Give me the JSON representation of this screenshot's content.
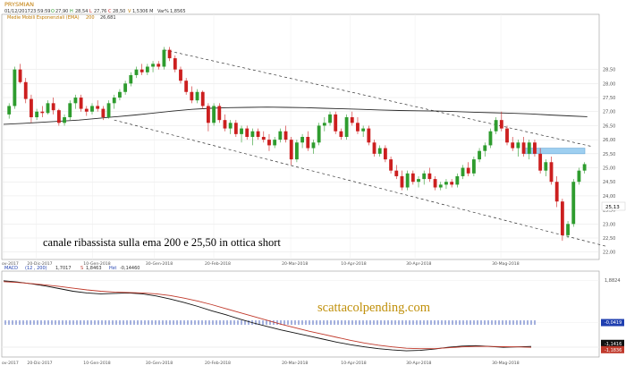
{
  "chart_data": [
    {
      "type": "candlestick",
      "title": "PRYSMIAN",
      "info_line": {
        "date": "01/12/2017",
        "time": "23:59:59",
        "open": "27,90",
        "high": "28,54",
        "low": "27,76",
        "close": "28,50",
        "volume": "1,5306 M",
        "var_pct": "1,8565"
      },
      "indicator": {
        "label": "Medie Mobili Esponenziali (EMA)",
        "period": "200",
        "value": "26,681"
      },
      "y_ticks": [
        "28,50",
        "28,00",
        "27,50",
        "27,00",
        "26,50",
        "26,00",
        "25,50",
        "25,00",
        "24,50",
        "24,00",
        "23,50",
        "23,00",
        "22,50",
        "22,00"
      ],
      "ylim": [
        21.8,
        30.4
      ],
      "x_ticks": [
        "ov-2017",
        "20-Dic-2017",
        "10-Gen-2018",
        "30-Gen-2018",
        "20-Feb-2018",
        "20-Mar-2018",
        "10-Apr-2018",
        "30-Apr-2018",
        "30-Mag-2018"
      ],
      "last_price_label": "25,13",
      "annotation": "canale ribassista sulla ema 200 e 25,50 in ottica short",
      "colors": {
        "up": "#2e9c2e",
        "down": "#cc1f1f",
        "ema": "#2b2b2b",
        "channel": "#333333",
        "target_zone": "#9ecff0"
      },
      "candles": [
        {
          "o": 26.9,
          "h": 27.3,
          "l": 26.75,
          "c": 27.2
        },
        {
          "o": 27.2,
          "h": 28.6,
          "l": 27.1,
          "c": 28.5
        },
        {
          "o": 28.5,
          "h": 28.7,
          "l": 28.0,
          "c": 28.05
        },
        {
          "o": 28.05,
          "h": 28.2,
          "l": 27.3,
          "c": 27.45
        },
        {
          "o": 27.45,
          "h": 27.6,
          "l": 26.6,
          "c": 26.8
        },
        {
          "o": 26.8,
          "h": 27.1,
          "l": 26.7,
          "c": 27.0
        },
        {
          "o": 27.0,
          "h": 27.2,
          "l": 26.8,
          "c": 26.95
        },
        {
          "o": 26.95,
          "h": 27.4,
          "l": 26.9,
          "c": 27.3
        },
        {
          "o": 27.3,
          "h": 27.5,
          "l": 26.9,
          "c": 27.05
        },
        {
          "o": 27.05,
          "h": 27.1,
          "l": 26.5,
          "c": 26.6
        },
        {
          "o": 26.6,
          "h": 26.9,
          "l": 26.5,
          "c": 26.8
        },
        {
          "o": 26.8,
          "h": 27.4,
          "l": 26.7,
          "c": 27.3
        },
        {
          "o": 27.3,
          "h": 27.6,
          "l": 27.1,
          "c": 27.5
        },
        {
          "o": 27.5,
          "h": 27.6,
          "l": 27.0,
          "c": 27.1
        },
        {
          "o": 27.1,
          "h": 27.2,
          "l": 26.85,
          "c": 27.0
        },
        {
          "o": 27.0,
          "h": 27.3,
          "l": 26.9,
          "c": 27.2
        },
        {
          "o": 27.2,
          "h": 27.4,
          "l": 27.0,
          "c": 27.1
        },
        {
          "o": 27.1,
          "h": 27.2,
          "l": 26.7,
          "c": 26.8
        },
        {
          "o": 26.8,
          "h": 27.4,
          "l": 26.75,
          "c": 27.3
        },
        {
          "o": 27.3,
          "h": 27.6,
          "l": 27.1,
          "c": 27.5
        },
        {
          "o": 27.5,
          "h": 27.8,
          "l": 27.4,
          "c": 27.7
        },
        {
          "o": 27.7,
          "h": 28.1,
          "l": 27.6,
          "c": 28.0
        },
        {
          "o": 28.0,
          "h": 28.4,
          "l": 27.9,
          "c": 28.3
        },
        {
          "o": 28.3,
          "h": 28.6,
          "l": 28.2,
          "c": 28.5
        },
        {
          "o": 28.5,
          "h": 28.7,
          "l": 28.3,
          "c": 28.4
        },
        {
          "o": 28.4,
          "h": 28.7,
          "l": 28.3,
          "c": 28.6
        },
        {
          "o": 28.6,
          "h": 28.8,
          "l": 28.4,
          "c": 28.7
        },
        {
          "o": 28.7,
          "h": 28.8,
          "l": 28.5,
          "c": 28.6
        },
        {
          "o": 28.6,
          "h": 29.3,
          "l": 28.5,
          "c": 29.2
        },
        {
          "o": 29.2,
          "h": 29.3,
          "l": 28.8,
          "c": 28.9
        },
        {
          "o": 28.9,
          "h": 29.0,
          "l": 28.4,
          "c": 28.5
        },
        {
          "o": 28.5,
          "h": 28.6,
          "l": 28.0,
          "c": 28.1
        },
        {
          "o": 28.1,
          "h": 28.2,
          "l": 27.6,
          "c": 27.7
        },
        {
          "o": 27.7,
          "h": 27.9,
          "l": 27.3,
          "c": 27.4
        },
        {
          "o": 27.4,
          "h": 27.8,
          "l": 27.3,
          "c": 27.7
        },
        {
          "o": 27.7,
          "h": 27.75,
          "l": 27.1,
          "c": 27.2
        },
        {
          "o": 27.2,
          "h": 27.3,
          "l": 26.3,
          "c": 26.6
        },
        {
          "o": 26.6,
          "h": 27.3,
          "l": 26.5,
          "c": 27.2
        },
        {
          "o": 27.2,
          "h": 27.3,
          "l": 26.6,
          "c": 26.7
        },
        {
          "o": 26.7,
          "h": 26.9,
          "l": 26.3,
          "c": 26.4
        },
        {
          "o": 26.4,
          "h": 26.7,
          "l": 26.2,
          "c": 26.6
        },
        {
          "o": 26.6,
          "h": 26.7,
          "l": 26.1,
          "c": 26.2
        },
        {
          "o": 26.2,
          "h": 26.5,
          "l": 25.9,
          "c": 26.4
        },
        {
          "o": 26.4,
          "h": 26.5,
          "l": 26.0,
          "c": 26.1
        },
        {
          "o": 26.1,
          "h": 26.4,
          "l": 25.8,
          "c": 26.3
        },
        {
          "o": 26.3,
          "h": 26.4,
          "l": 26.0,
          "c": 26.1
        },
        {
          "o": 26.1,
          "h": 26.3,
          "l": 25.9,
          "c": 26.0
        },
        {
          "o": 26.0,
          "h": 26.2,
          "l": 25.6,
          "c": 25.8
        },
        {
          "o": 25.8,
          "h": 26.1,
          "l": 25.7,
          "c": 26.0
        },
        {
          "o": 26.0,
          "h": 26.4,
          "l": 25.9,
          "c": 26.3
        },
        {
          "o": 26.3,
          "h": 26.5,
          "l": 25.9,
          "c": 26.0
        },
        {
          "o": 26.0,
          "h": 26.1,
          "l": 25.1,
          "c": 25.3
        },
        {
          "o": 25.3,
          "h": 26.0,
          "l": 25.2,
          "c": 25.9
        },
        {
          "o": 25.9,
          "h": 26.2,
          "l": 25.7,
          "c": 26.1
        },
        {
          "o": 26.1,
          "h": 26.3,
          "l": 25.6,
          "c": 25.7
        },
        {
          "o": 25.7,
          "h": 26.0,
          "l": 25.5,
          "c": 25.9
        },
        {
          "o": 25.9,
          "h": 26.6,
          "l": 25.8,
          "c": 26.5
        },
        {
          "o": 26.5,
          "h": 26.8,
          "l": 26.3,
          "c": 26.6
        },
        {
          "o": 26.6,
          "h": 27.0,
          "l": 26.5,
          "c": 26.9
        },
        {
          "o": 26.9,
          "h": 27.0,
          "l": 26.2,
          "c": 26.3
        },
        {
          "o": 26.3,
          "h": 26.4,
          "l": 26.0,
          "c": 26.1
        },
        {
          "o": 26.1,
          "h": 26.9,
          "l": 26.0,
          "c": 26.8
        },
        {
          "o": 26.8,
          "h": 27.0,
          "l": 26.5,
          "c": 26.6
        },
        {
          "o": 26.6,
          "h": 26.8,
          "l": 26.2,
          "c": 26.3
        },
        {
          "o": 26.3,
          "h": 26.5,
          "l": 26.1,
          "c": 26.4
        },
        {
          "o": 26.4,
          "h": 26.5,
          "l": 25.8,
          "c": 25.9
        },
        {
          "o": 25.9,
          "h": 26.0,
          "l": 25.4,
          "c": 25.5
        },
        {
          "o": 25.5,
          "h": 25.8,
          "l": 25.4,
          "c": 25.7
        },
        {
          "o": 25.7,
          "h": 25.8,
          "l": 25.2,
          "c": 25.3
        },
        {
          "o": 25.3,
          "h": 25.4,
          "l": 24.8,
          "c": 24.9
        },
        {
          "o": 24.9,
          "h": 25.1,
          "l": 24.6,
          "c": 24.7
        },
        {
          "o": 24.7,
          "h": 24.9,
          "l": 24.2,
          "c": 24.3
        },
        {
          "o": 24.3,
          "h": 24.9,
          "l": 24.2,
          "c": 24.8
        },
        {
          "o": 24.8,
          "h": 24.9,
          "l": 24.4,
          "c": 24.5
        },
        {
          "o": 24.5,
          "h": 24.7,
          "l": 24.3,
          "c": 24.6
        },
        {
          "o": 24.6,
          "h": 24.9,
          "l": 24.4,
          "c": 24.8
        },
        {
          "o": 24.8,
          "h": 25.0,
          "l": 24.5,
          "c": 24.6
        },
        {
          "o": 24.6,
          "h": 24.7,
          "l": 24.2,
          "c": 24.3
        },
        {
          "o": 24.3,
          "h": 24.5,
          "l": 24.2,
          "c": 24.4
        },
        {
          "o": 24.4,
          "h": 24.6,
          "l": 24.25,
          "c": 24.5
        },
        {
          "o": 24.5,
          "h": 24.6,
          "l": 24.3,
          "c": 24.4
        },
        {
          "o": 24.4,
          "h": 24.8,
          "l": 24.3,
          "c": 24.7
        },
        {
          "o": 24.7,
          "h": 25.1,
          "l": 24.6,
          "c": 25.0
        },
        {
          "o": 25.0,
          "h": 25.2,
          "l": 24.7,
          "c": 24.8
        },
        {
          "o": 24.8,
          "h": 25.4,
          "l": 24.7,
          "c": 25.3
        },
        {
          "o": 25.3,
          "h": 25.7,
          "l": 25.2,
          "c": 25.6
        },
        {
          "o": 25.6,
          "h": 25.9,
          "l": 25.4,
          "c": 25.8
        },
        {
          "o": 25.8,
          "h": 26.4,
          "l": 25.7,
          "c": 26.3
        },
        {
          "o": 26.3,
          "h": 26.8,
          "l": 26.2,
          "c": 26.7
        },
        {
          "o": 26.7,
          "h": 27.0,
          "l": 26.3,
          "c": 26.4
        },
        {
          "o": 26.4,
          "h": 26.5,
          "l": 25.8,
          "c": 25.9
        },
        {
          "o": 25.9,
          "h": 26.1,
          "l": 25.6,
          "c": 25.7
        },
        {
          "o": 25.7,
          "h": 26.0,
          "l": 25.4,
          "c": 25.9
        },
        {
          "o": 25.9,
          "h": 26.1,
          "l": 25.4,
          "c": 25.5
        },
        {
          "o": 25.5,
          "h": 26.0,
          "l": 25.3,
          "c": 25.9
        },
        {
          "o": 25.9,
          "h": 26.0,
          "l": 25.4,
          "c": 25.5
        },
        {
          "o": 25.5,
          "h": 25.7,
          "l": 24.8,
          "c": 24.9
        },
        {
          "o": 24.9,
          "h": 25.3,
          "l": 24.7,
          "c": 25.2
        },
        {
          "o": 25.2,
          "h": 25.4,
          "l": 24.4,
          "c": 24.5
        },
        {
          "o": 24.5,
          "h": 24.7,
          "l": 23.6,
          "c": 23.8
        },
        {
          "o": 23.8,
          "h": 23.9,
          "l": 22.4,
          "c": 22.6
        },
        {
          "o": 22.6,
          "h": 23.1,
          "l": 22.5,
          "c": 23.0
        },
        {
          "o": 23.0,
          "h": 24.6,
          "l": 22.9,
          "c": 24.5
        },
        {
          "o": 24.5,
          "h": 25.0,
          "l": 24.4,
          "c": 24.9
        },
        {
          "o": 24.9,
          "h": 25.2,
          "l": 24.8,
          "c": 25.13
        }
      ],
      "ema200": [
        26.55,
        26.58,
        26.62,
        26.66,
        26.7,
        26.76,
        26.82,
        26.88,
        26.95,
        27.02,
        27.08,
        27.12,
        27.14,
        27.15,
        27.16,
        27.15,
        27.14,
        27.12,
        27.1,
        27.08,
        27.06,
        27.04,
        27.03,
        27.02,
        27.0,
        26.98,
        26.96,
        26.94,
        26.92,
        26.88,
        26.85,
        26.82
      ],
      "channel_upper": [
        [
          29.2,
          28
        ],
        [
          26.3,
          111
        ]
      ],
      "channel_lower": [
        [
          26.7,
          19
        ],
        [
          22.2,
          108
        ]
      ],
      "target_zone": [
        25.5,
        25.7
      ]
    },
    {
      "type": "line",
      "title": "MACD",
      "params": "(12 , 200)",
      "readout": {
        "macd": "1,7017",
        "signal": "1,8463",
        "hist_label": "Hst",
        "hist": "-0,14460"
      },
      "y_ticks": [
        "1,8824",
        "-0,0419",
        "-1,1416",
        "-1,1836"
      ],
      "ylim": [
        -1.5,
        2.2
      ],
      "colors": {
        "macd": "#111111",
        "signal": "#c0392b",
        "histogram": "#1f3fb0"
      },
      "macd": [
        1.88,
        1.82,
        1.74,
        1.64,
        1.52,
        1.4,
        1.32,
        1.28,
        1.3,
        1.32,
        1.28,
        1.18,
        1.04,
        0.88,
        0.7,
        0.5,
        0.32,
        0.12,
        -0.06,
        -0.22,
        -0.38,
        -0.52,
        -0.66,
        -0.8,
        -0.94,
        -1.06,
        -1.16,
        -1.24,
        -1.3,
        -1.34,
        -1.32,
        -1.26,
        -1.18,
        -1.12,
        -1.1,
        -1.14,
        -1.18,
        -1.16,
        -1.14
      ],
      "signal": [
        1.84,
        1.8,
        1.75,
        1.69,
        1.62,
        1.54,
        1.46,
        1.4,
        1.36,
        1.34,
        1.32,
        1.28,
        1.2,
        1.08,
        0.94,
        0.78,
        0.6,
        0.42,
        0.24,
        0.06,
        -0.12,
        -0.28,
        -0.44,
        -0.58,
        -0.72,
        -0.86,
        -0.98,
        -1.08,
        -1.16,
        -1.22,
        -1.24,
        -1.24,
        -1.2,
        -1.16,
        -1.14,
        -1.14,
        -1.15,
        -1.16,
        -1.18
      ],
      "histogram_value": -0.04,
      "watermark": "scattacolpending.com"
    }
  ]
}
